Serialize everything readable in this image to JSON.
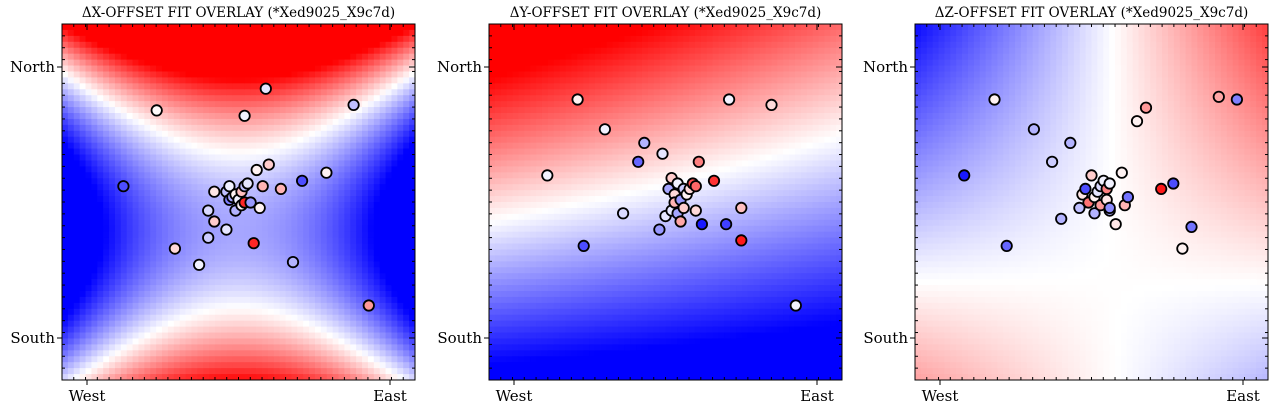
{
  "chart_data": [
    {
      "type": "scatter",
      "title": "ΔX-OFFSET FIT OVERLAY (*Xed9025_X9c7d)",
      "x_ticks": [
        "West",
        "East"
      ],
      "y_ticks": [
        "North",
        "South"
      ],
      "colormap": "bwr",
      "background": "fitted surface",
      "points": [
        {
          "x": 0.12,
          "y": 0.56,
          "v": -0.7
        },
        {
          "x": 0.23,
          "y": 0.84,
          "v": 0.02
        },
        {
          "x": 0.29,
          "y": 0.33,
          "v": 0.15
        },
        {
          "x": 0.37,
          "y": 0.27,
          "v": -0.05
        },
        {
          "x": 0.4,
          "y": 0.37,
          "v": -0.2
        },
        {
          "x": 0.4,
          "y": 0.47,
          "v": -0.15
        },
        {
          "x": 0.42,
          "y": 0.54,
          "v": 0.1
        },
        {
          "x": 0.42,
          "y": 0.43,
          "v": 0.2
        },
        {
          "x": 0.46,
          "y": 0.4,
          "v": -0.1
        },
        {
          "x": 0.46,
          "y": 0.54,
          "v": -0.25
        },
        {
          "x": 0.47,
          "y": 0.56,
          "v": -0.05
        },
        {
          "x": 0.47,
          "y": 0.51,
          "v": -0.5
        },
        {
          "x": 0.48,
          "y": 0.52,
          "v": -0.35
        },
        {
          "x": 0.49,
          "y": 0.47,
          "v": -0.3
        },
        {
          "x": 0.49,
          "y": 0.53,
          "v": 0.05
        },
        {
          "x": 0.5,
          "y": 0.51,
          "v": -0.05
        },
        {
          "x": 0.51,
          "y": 0.54,
          "v": 0.25
        },
        {
          "x": 0.51,
          "y": 0.49,
          "v": 0.05
        },
        {
          "x": 0.52,
          "y": 0.56,
          "v": -0.25
        },
        {
          "x": 0.52,
          "y": 0.5,
          "v": 0.85
        },
        {
          "x": 0.53,
          "y": 0.57,
          "v": -0.1
        },
        {
          "x": 0.54,
          "y": 0.5,
          "v": -0.4
        },
        {
          "x": 0.52,
          "y": 0.82,
          "v": -0.05
        },
        {
          "x": 0.56,
          "y": 0.62,
          "v": 0.05
        },
        {
          "x": 0.57,
          "y": 0.48,
          "v": 0.05
        },
        {
          "x": 0.58,
          "y": 0.56,
          "v": 0.3
        },
        {
          "x": 0.6,
          "y": 0.64,
          "v": 0.2
        },
        {
          "x": 0.64,
          "y": 0.55,
          "v": 0.3
        },
        {
          "x": 0.59,
          "y": 0.92,
          "v": -0.1
        },
        {
          "x": 0.55,
          "y": 0.35,
          "v": 0.85
        },
        {
          "x": 0.68,
          "y": 0.28,
          "v": -0.3
        },
        {
          "x": 0.71,
          "y": 0.58,
          "v": -0.7
        },
        {
          "x": 0.79,
          "y": 0.61,
          "v": 0.05
        },
        {
          "x": 0.88,
          "y": 0.86,
          "v": -0.25
        },
        {
          "x": 0.93,
          "y": 0.12,
          "v": 0.4
        }
      ]
    },
    {
      "type": "scatter",
      "title": "ΔY-OFFSET FIT OVERLAY (*Xed9025_X9c7d)",
      "x_ticks": [
        "West",
        "East"
      ],
      "y_ticks": [
        "North",
        "South"
      ],
      "colormap": "bwr",
      "background": "fitted surface",
      "points": [
        {
          "x": 0.11,
          "y": 0.6,
          "v": -0.05
        },
        {
          "x": 0.21,
          "y": 0.88,
          "v": 0.05
        },
        {
          "x": 0.23,
          "y": 0.34,
          "v": -0.7
        },
        {
          "x": 0.3,
          "y": 0.77,
          "v": -0.05
        },
        {
          "x": 0.36,
          "y": 0.46,
          "v": -0.15
        },
        {
          "x": 0.41,
          "y": 0.65,
          "v": -0.6
        },
        {
          "x": 0.43,
          "y": 0.72,
          "v": -0.3
        },
        {
          "x": 0.48,
          "y": 0.4,
          "v": -0.4
        },
        {
          "x": 0.49,
          "y": 0.68,
          "v": -0.1
        },
        {
          "x": 0.5,
          "y": 0.45,
          "v": -0.1
        },
        {
          "x": 0.51,
          "y": 0.55,
          "v": -0.35
        },
        {
          "x": 0.52,
          "y": 0.59,
          "v": 0.2
        },
        {
          "x": 0.52,
          "y": 0.47,
          "v": -0.1
        },
        {
          "x": 0.53,
          "y": 0.53,
          "v": 0.15
        },
        {
          "x": 0.53,
          "y": 0.5,
          "v": 0.3
        },
        {
          "x": 0.54,
          "y": 0.57,
          "v": -0.05
        },
        {
          "x": 0.54,
          "y": 0.46,
          "v": -0.35
        },
        {
          "x": 0.55,
          "y": 0.51,
          "v": -0.4
        },
        {
          "x": 0.56,
          "y": 0.55,
          "v": -0.2
        },
        {
          "x": 0.56,
          "y": 0.48,
          "v": 0.2
        },
        {
          "x": 0.55,
          "y": 0.43,
          "v": 0.35
        },
        {
          "x": 0.57,
          "y": 0.53,
          "v": 0.05
        },
        {
          "x": 0.58,
          "y": 0.55,
          "v": 0.15
        },
        {
          "x": 0.59,
          "y": 0.57,
          "v": 0.7
        },
        {
          "x": 0.6,
          "y": 0.47,
          "v": 0.15
        },
        {
          "x": 0.6,
          "y": 0.56,
          "v": 0.6
        },
        {
          "x": 0.61,
          "y": 0.65,
          "v": 0.5
        },
        {
          "x": 0.62,
          "y": 0.42,
          "v": -0.9
        },
        {
          "x": 0.66,
          "y": 0.58,
          "v": 0.8
        },
        {
          "x": 0.7,
          "y": 0.42,
          "v": -0.75
        },
        {
          "x": 0.71,
          "y": 0.88,
          "v": -0.05
        },
        {
          "x": 0.75,
          "y": 0.36,
          "v": 0.9
        },
        {
          "x": 0.75,
          "y": 0.48,
          "v": 0.25
        },
        {
          "x": 0.85,
          "y": 0.86,
          "v": 0.15
        },
        {
          "x": 0.93,
          "y": 0.12,
          "v": -0.05
        }
      ]
    },
    {
      "type": "scatter",
      "title": "ΔZ-OFFSET FIT OVERLAY (*Xed9025_X9c7d)",
      "x_ticks": [
        "West",
        "East"
      ],
      "y_ticks": [
        "North",
        "South"
      ],
      "colormap": "bwr",
      "background": "fitted surface",
      "points": [
        {
          "x": 0.08,
          "y": 0.6,
          "v": -0.9
        },
        {
          "x": 0.18,
          "y": 0.88,
          "v": 0.05
        },
        {
          "x": 0.22,
          "y": 0.34,
          "v": -0.6
        },
        {
          "x": 0.31,
          "y": 0.77,
          "v": -0.3
        },
        {
          "x": 0.37,
          "y": 0.65,
          "v": -0.2
        },
        {
          "x": 0.4,
          "y": 0.44,
          "v": -0.3
        },
        {
          "x": 0.43,
          "y": 0.72,
          "v": -0.3
        },
        {
          "x": 0.46,
          "y": 0.48,
          "v": -0.25
        },
        {
          "x": 0.47,
          "y": 0.53,
          "v": 0.1
        },
        {
          "x": 0.48,
          "y": 0.55,
          "v": -0.7
        },
        {
          "x": 0.49,
          "y": 0.5,
          "v": 0.55
        },
        {
          "x": 0.5,
          "y": 0.6,
          "v": 0.2
        },
        {
          "x": 0.51,
          "y": 0.46,
          "v": -0.3
        },
        {
          "x": 0.51,
          "y": 0.52,
          "v": 0.05
        },
        {
          "x": 0.52,
          "y": 0.54,
          "v": -0.1
        },
        {
          "x": 0.53,
          "y": 0.49,
          "v": 0.4
        },
        {
          "x": 0.53,
          "y": 0.56,
          "v": -0.15
        },
        {
          "x": 0.54,
          "y": 0.58,
          "v": -0.05
        },
        {
          "x": 0.55,
          "y": 0.51,
          "v": 0.1
        },
        {
          "x": 0.55,
          "y": 0.55,
          "v": 0.5
        },
        {
          "x": 0.56,
          "y": 0.57,
          "v": -0.05
        },
        {
          "x": 0.56,
          "y": 0.47,
          "v": -0.3
        },
        {
          "x": 0.56,
          "y": 0.48,
          "v": -0.45
        },
        {
          "x": 0.58,
          "y": 0.42,
          "v": 0.1
        },
        {
          "x": 0.6,
          "y": 0.61,
          "v": 0.05
        },
        {
          "x": 0.61,
          "y": 0.49,
          "v": 0.3
        },
        {
          "x": 0.62,
          "y": 0.52,
          "v": -0.55
        },
        {
          "x": 0.65,
          "y": 0.8,
          "v": 0.05
        },
        {
          "x": 0.68,
          "y": 0.85,
          "v": 0.4
        },
        {
          "x": 0.73,
          "y": 0.55,
          "v": 0.9
        },
        {
          "x": 0.77,
          "y": 0.57,
          "v": -0.7
        },
        {
          "x": 0.8,
          "y": 0.33,
          "v": 0.05
        },
        {
          "x": 0.83,
          "y": 0.41,
          "v": -0.55
        },
        {
          "x": 0.98,
          "y": 0.88,
          "v": -0.5
        },
        {
          "x": 0.92,
          "y": 0.89,
          "v": 0.35
        }
      ]
    }
  ]
}
